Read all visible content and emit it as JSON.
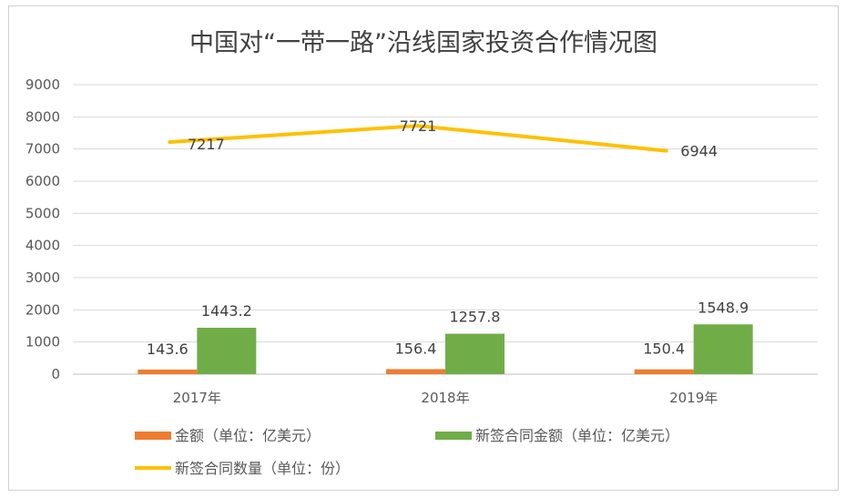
{
  "chart_data": {
    "type": "bar",
    "title": "中国对“一带一路”沿线国家投资合作情况图",
    "categories": [
      "2017年",
      "2018年",
      "2019年"
    ],
    "y_ticks": [
      "0",
      "1000",
      "2000",
      "3000",
      "4000",
      "5000",
      "6000",
      "7000",
      "8000",
      "9000"
    ],
    "ylim": [
      0,
      9000
    ],
    "grid": true,
    "legend_position": "bottom",
    "series": [
      {
        "name": "金额（单位：亿美元）",
        "kind": "bar",
        "color": "#ED7D31",
        "values": [
          143.6,
          156.4,
          150.4
        ],
        "labels": [
          "143.6",
          "156.4",
          "150.4"
        ]
      },
      {
        "name": "新签合同金额（单位：亿美元）",
        "kind": "bar",
        "color": "#70AD47",
        "values": [
          1443.2,
          1257.8,
          1548.9
        ],
        "labels": [
          "1443.2",
          "1257.8",
          "1548.9"
        ]
      },
      {
        "name": "新签合同数量（单位：份）",
        "kind": "line",
        "color": "#FFC000",
        "values": [
          7217,
          7721,
          6944
        ],
        "labels": [
          "7217",
          "7721",
          "6944"
        ]
      }
    ]
  }
}
